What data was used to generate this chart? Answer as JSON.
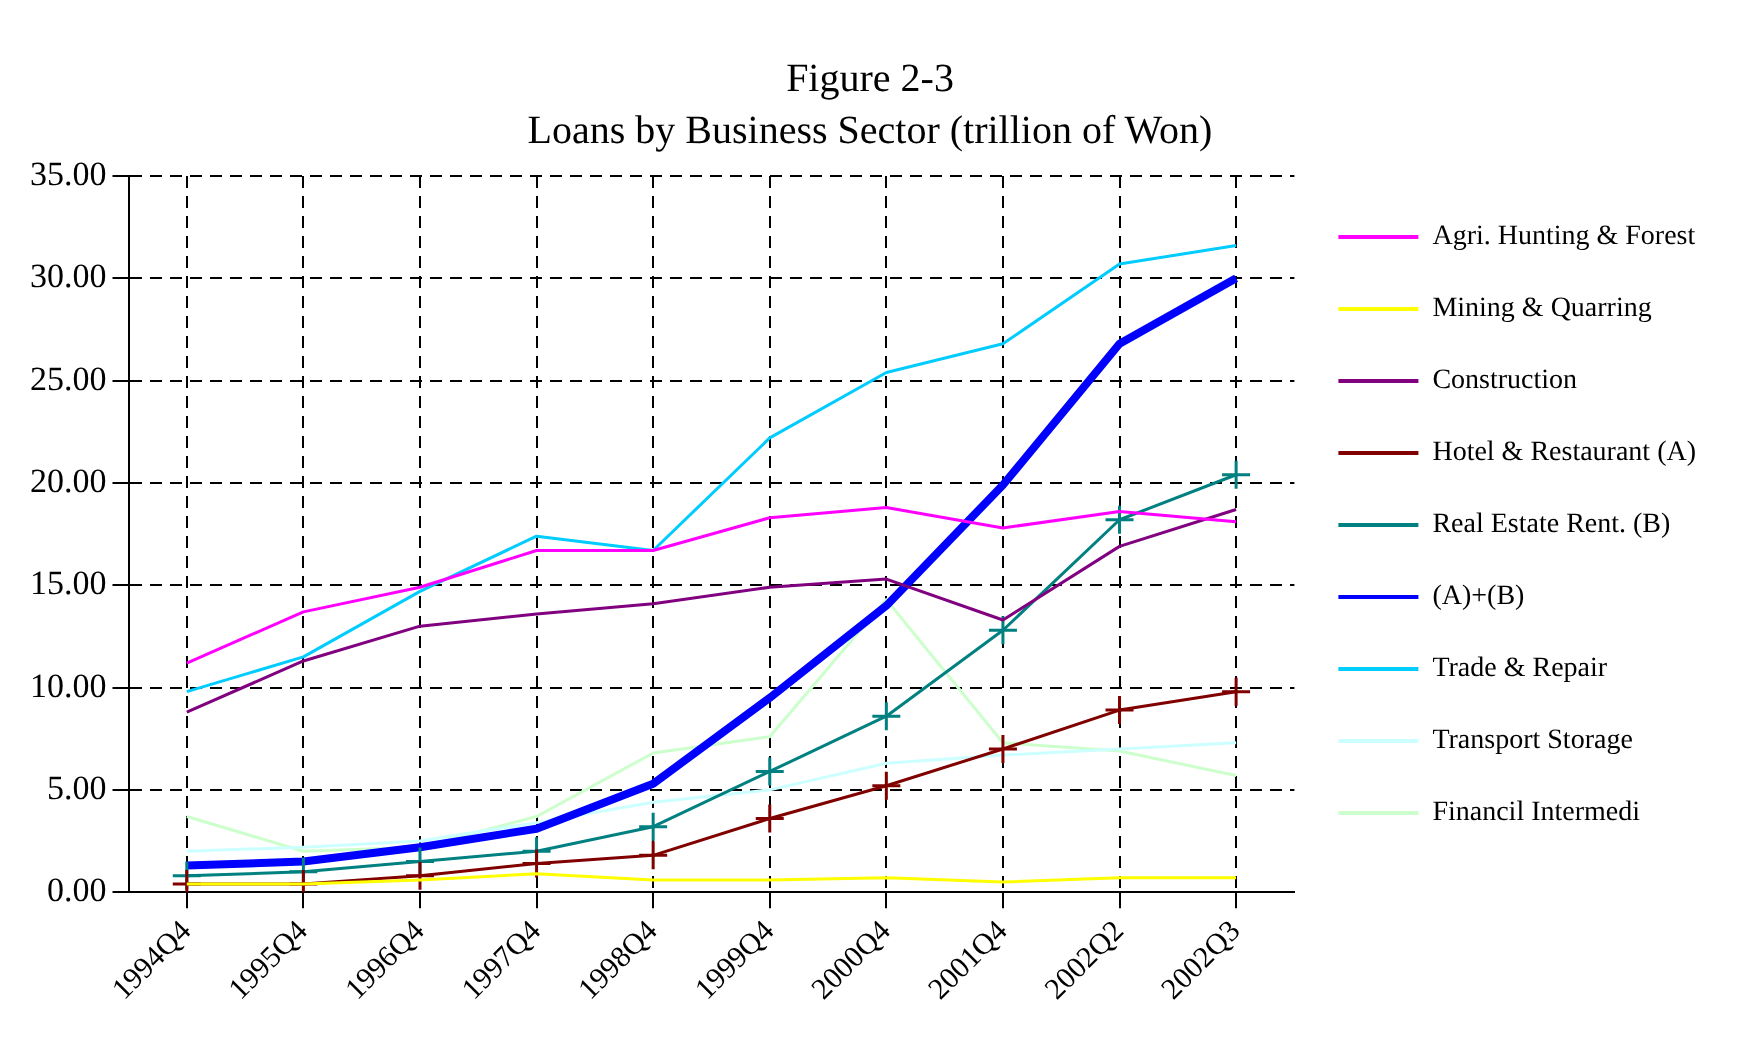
{
  "chart_data": {
    "type": "line",
    "title": "Figure 2-3",
    "subtitle": "Loans by Business Sector (trillion of Won)",
    "categories": [
      "1994Q4",
      "1995Q4",
      "1996Q4",
      "1997Q4",
      "1998Q4",
      "1999Q4",
      "2000Q4",
      "2001Q4",
      "2002Q2",
      "2002Q3"
    ],
    "series": [
      {
        "name": "Agri. Hunting & Forest",
        "color": "#ff00ff",
        "values": [
          11.2,
          13.7,
          14.9,
          16.7,
          16.7,
          18.3,
          18.8,
          17.8,
          18.6,
          18.1
        ]
      },
      {
        "name": "Mining & Quarring",
        "color": "#ffff00",
        "values": [
          0.4,
          0.4,
          0.6,
          0.9,
          0.6,
          0.6,
          0.7,
          0.5,
          0.7,
          0.7
        ]
      },
      {
        "name": "Construction",
        "color": "#800080",
        "values": [
          8.8,
          11.3,
          13.0,
          13.6,
          14.1,
          14.9,
          15.3,
          13.3,
          16.9,
          18.7
        ]
      },
      {
        "name": "Hotel & Restaurant (A)",
        "color": "#800000",
        "marker": "cross",
        "values": [
          0.4,
          0.4,
          0.8,
          1.4,
          1.8,
          3.6,
          5.2,
          7.0,
          8.9,
          9.8
        ]
      },
      {
        "name": "Real Estate Rent. (B)",
        "color": "#008080",
        "marker": "cross",
        "values": [
          0.8,
          1.0,
          1.5,
          2.0,
          3.2,
          5.9,
          8.6,
          12.8,
          18.2,
          20.4
        ]
      },
      {
        "name": "(A)+(B)",
        "color": "#0000ff",
        "values": [
          1.3,
          1.5,
          2.2,
          3.1,
          5.3,
          9.5,
          14.0,
          19.9,
          26.8,
          30.0
        ]
      },
      {
        "name": "Trade & Repair",
        "color": "#00ccff",
        "values": [
          9.8,
          11.5,
          14.7,
          17.4,
          16.7,
          22.2,
          25.4,
          26.8,
          30.7,
          31.6
        ]
      },
      {
        "name": "Transport Storage",
        "color": "#ccffff",
        "values": [
          2.0,
          2.2,
          2.5,
          3.4,
          4.4,
          5.0,
          6.3,
          6.7,
          7.0,
          7.3
        ]
      },
      {
        "name": "Financil Intermedi",
        "color": "#ccffcc",
        "values": [
          3.7,
          2.0,
          2.2,
          3.7,
          6.8,
          7.6,
          14.3,
          7.3,
          6.9,
          5.7
        ]
      }
    ],
    "ylim": [
      0,
      35
    ],
    "yticks": [
      {
        "value": 0,
        "label": "0.00"
      },
      {
        "value": 5,
        "label": "5.00"
      },
      {
        "value": 10,
        "label": "10.00"
      },
      {
        "value": 15,
        "label": "15.00"
      },
      {
        "value": 20,
        "label": "20.00"
      },
      {
        "value": 25,
        "label": "25.00"
      },
      {
        "value": 30,
        "label": "30.00"
      },
      {
        "value": 35,
        "label": "35.00"
      }
    ],
    "grid": true,
    "legend": "right",
    "marker": "none",
    "line_style": "solid"
  }
}
